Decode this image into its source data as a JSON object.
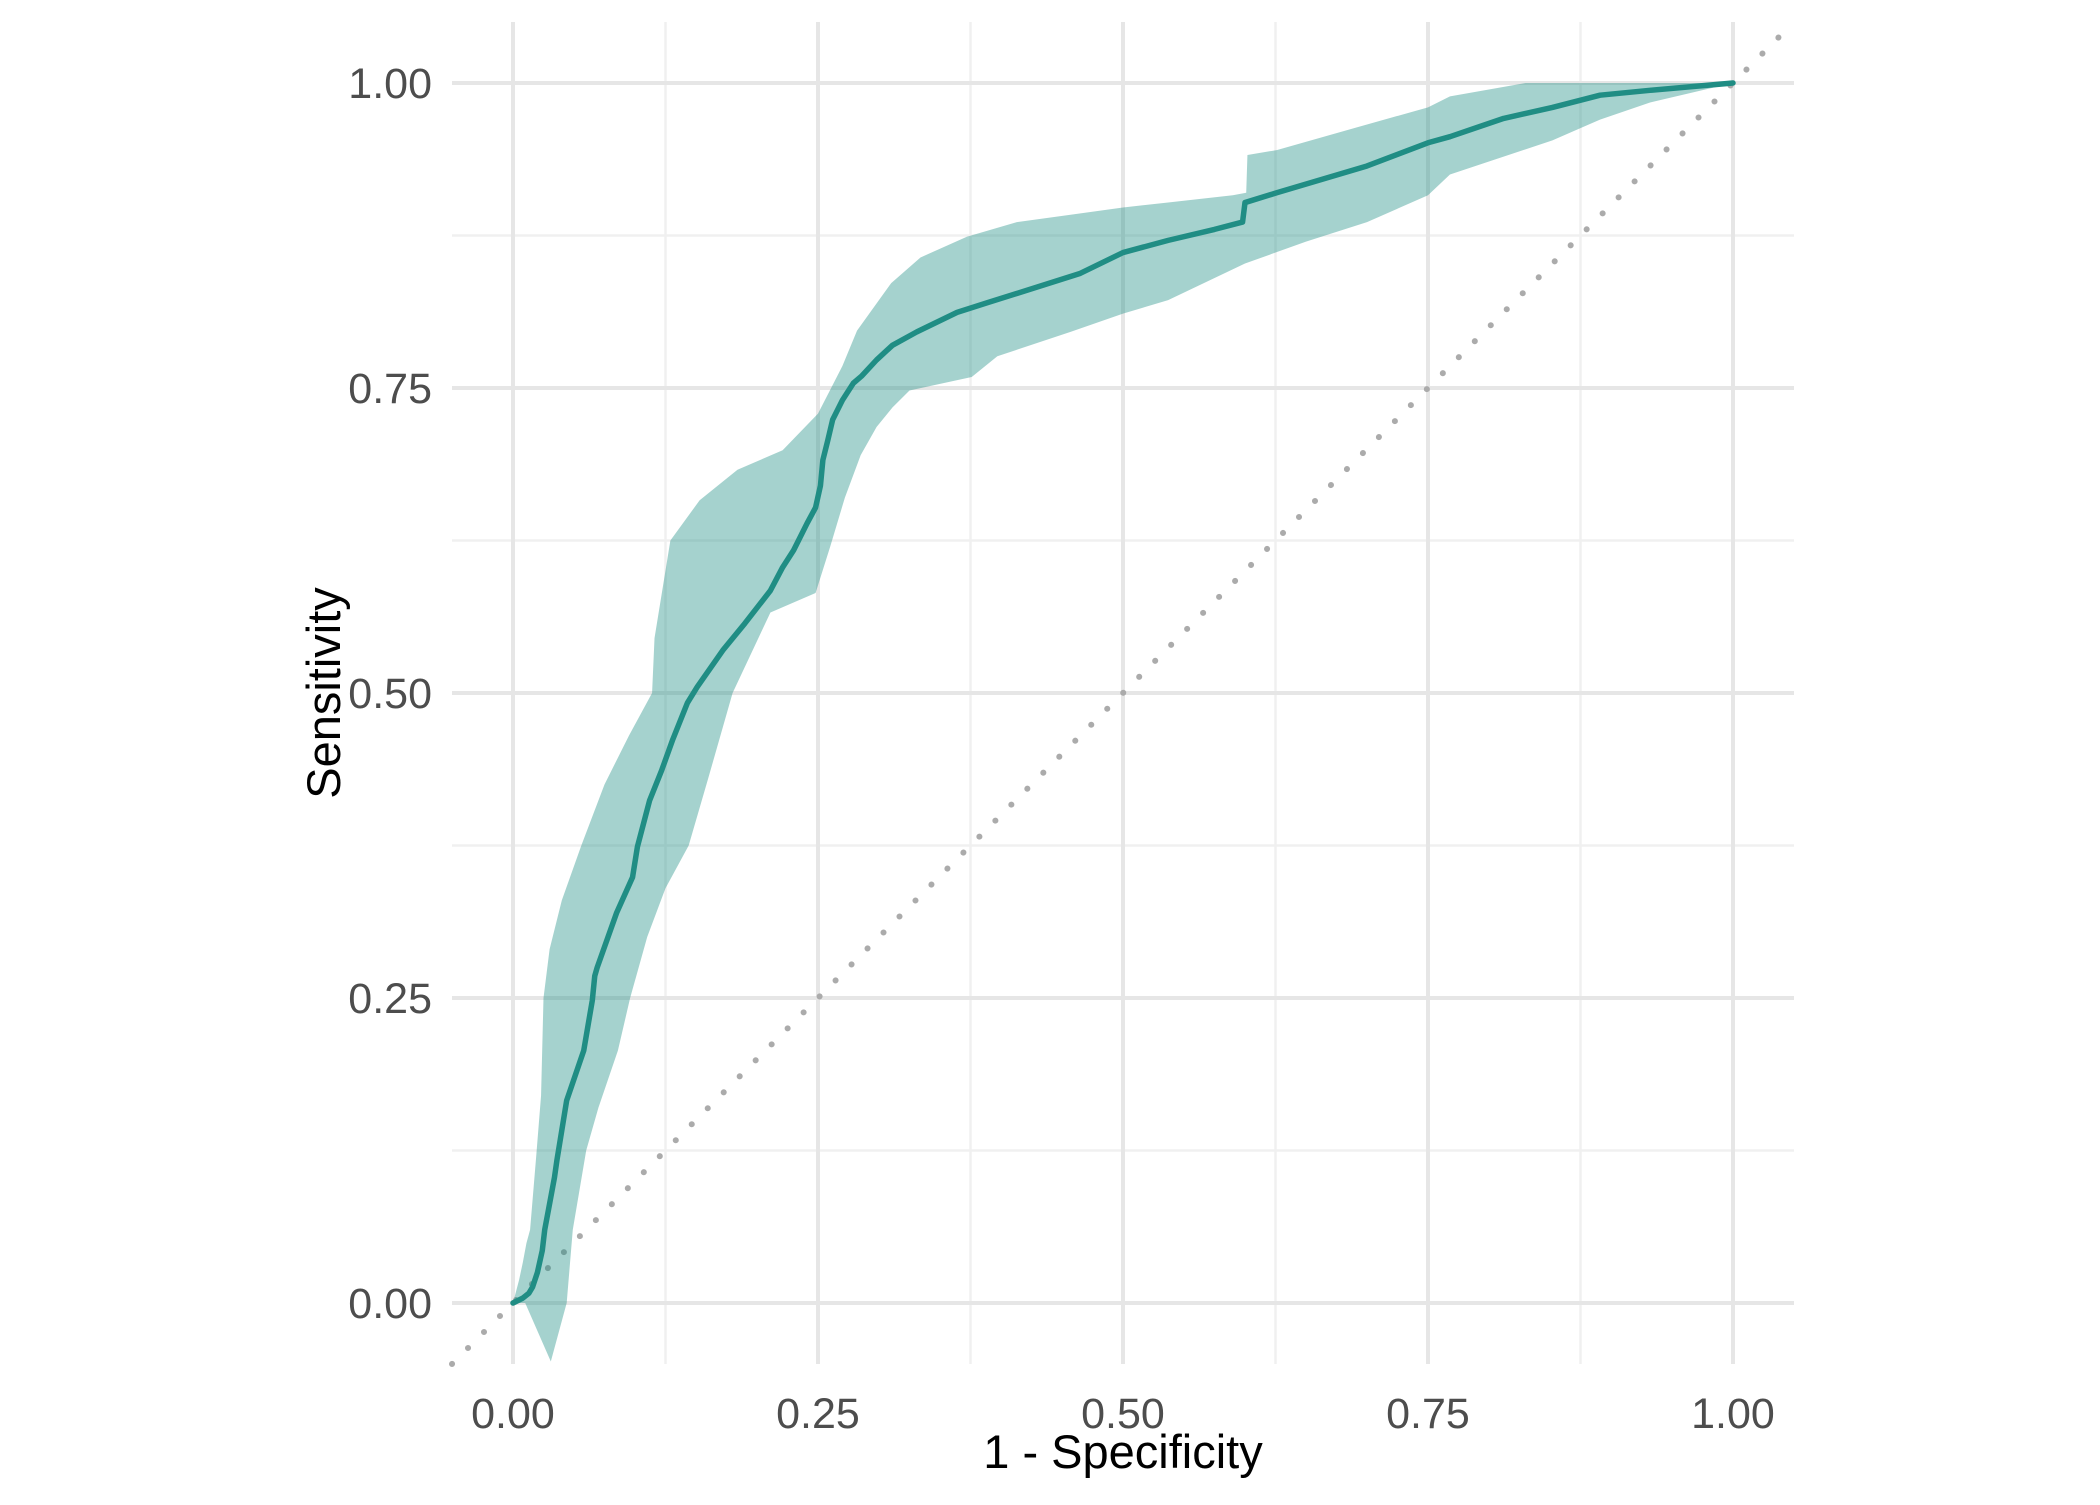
{
  "chart_data": {
    "type": "line",
    "subtype": "roc-curve-with-confidence-band",
    "title": "",
    "xlabel": "1 - Specificity",
    "ylabel": "Sensitivity",
    "xlim": [
      -0.05,
      1.05
    ],
    "ylim": [
      -0.05,
      1.05
    ],
    "x_ticks": {
      "values": [
        0,
        0.25,
        0.5,
        0.75,
        1
      ],
      "labels": [
        "0.00",
        "0.25",
        "0.50",
        "0.75",
        "1.00"
      ]
    },
    "y_ticks": {
      "values": [
        0,
        0.25,
        0.5,
        0.75,
        1
      ],
      "labels": [
        "0.00",
        "0.25",
        "0.50",
        "0.75",
        "1.00"
      ]
    },
    "grid": {
      "major": true,
      "minor": true
    },
    "legend_position": "none",
    "reference_line": {
      "style": "dotted",
      "from": [
        -0.05,
        -0.05
      ],
      "to": [
        1.05,
        1.05
      ]
    },
    "colors": {
      "roc_line": "#208d84",
      "ribbon_fill": "#1e8e85",
      "ribbon_opacity": 0.4,
      "grid_major": "#e6e6e6",
      "grid_minor": "#f0f0f0",
      "diagonal": "#ababab",
      "tick_label": "#4d4d4d",
      "axis_title": "#000000",
      "panel_background": "#ffffff"
    },
    "series": [
      {
        "name": "ROC curve",
        "role": "main-line",
        "points": [
          [
            0.0,
            0.0
          ],
          [
            0.008,
            0.004
          ],
          [
            0.013,
            0.008
          ],
          [
            0.016,
            0.013
          ],
          [
            0.02,
            0.025
          ],
          [
            0.024,
            0.043
          ],
          [
            0.026,
            0.06
          ],
          [
            0.029,
            0.076
          ],
          [
            0.034,
            0.103
          ],
          [
            0.036,
            0.117
          ],
          [
            0.044,
            0.166
          ],
          [
            0.058,
            0.207
          ],
          [
            0.065,
            0.248
          ],
          [
            0.067,
            0.268
          ],
          [
            0.069,
            0.275
          ],
          [
            0.085,
            0.32
          ],
          [
            0.098,
            0.349
          ],
          [
            0.102,
            0.374
          ],
          [
            0.112,
            0.412
          ],
          [
            0.122,
            0.437
          ],
          [
            0.131,
            0.462
          ],
          [
            0.143,
            0.492
          ],
          [
            0.151,
            0.505
          ],
          [
            0.172,
            0.535
          ],
          [
            0.19,
            0.557
          ],
          [
            0.211,
            0.584
          ],
          [
            0.221,
            0.603
          ],
          [
            0.23,
            0.617
          ],
          [
            0.241,
            0.639
          ],
          [
            0.248,
            0.652
          ],
          [
            0.252,
            0.67
          ],
          [
            0.254,
            0.691
          ],
          [
            0.258,
            0.707
          ],
          [
            0.262,
            0.724
          ],
          [
            0.27,
            0.74
          ],
          [
            0.279,
            0.754
          ],
          [
            0.286,
            0.76
          ],
          [
            0.298,
            0.773
          ],
          [
            0.311,
            0.785
          ],
          [
            0.331,
            0.796
          ],
          [
            0.364,
            0.812
          ],
          [
            0.389,
            0.82
          ],
          [
            0.421,
            0.83
          ],
          [
            0.465,
            0.844
          ],
          [
            0.5,
            0.861
          ],
          [
            0.537,
            0.871
          ],
          [
            0.575,
            0.88
          ],
          [
            0.598,
            0.886
          ],
          [
            0.6,
            0.902
          ],
          [
            0.626,
            0.91
          ],
          [
            0.7,
            0.932
          ],
          [
            0.75,
            0.951
          ],
          [
            0.768,
            0.956
          ],
          [
            0.812,
            0.971
          ],
          [
            0.852,
            0.98
          ],
          [
            0.891,
            0.99
          ],
          [
            0.932,
            0.994
          ],
          [
            1.0,
            1.0
          ]
        ]
      },
      {
        "name": "Confidence band upper bound",
        "role": "ribbon-upper",
        "points": [
          [
            0.0,
            0.0
          ],
          [
            0.005,
            0.019
          ],
          [
            0.008,
            0.033
          ],
          [
            0.011,
            0.049
          ],
          [
            0.014,
            0.06
          ],
          [
            0.019,
            0.12
          ],
          [
            0.023,
            0.17
          ],
          [
            0.025,
            0.25
          ],
          [
            0.03,
            0.29
          ],
          [
            0.04,
            0.33
          ],
          [
            0.056,
            0.375
          ],
          [
            0.075,
            0.425
          ],
          [
            0.095,
            0.465
          ],
          [
            0.114,
            0.5
          ],
          [
            0.116,
            0.545
          ],
          [
            0.129,
            0.625
          ],
          [
            0.153,
            0.658
          ],
          [
            0.184,
            0.683
          ],
          [
            0.221,
            0.699
          ],
          [
            0.25,
            0.729
          ],
          [
            0.27,
            0.768
          ],
          [
            0.282,
            0.797
          ],
          [
            0.31,
            0.836
          ],
          [
            0.334,
            0.857
          ],
          [
            0.372,
            0.874
          ],
          [
            0.413,
            0.886
          ],
          [
            0.457,
            0.892
          ],
          [
            0.5,
            0.898
          ],
          [
            0.537,
            0.902
          ],
          [
            0.59,
            0.908
          ],
          [
            0.601,
            0.91
          ],
          [
            0.602,
            0.941
          ],
          [
            0.626,
            0.945
          ],
          [
            0.7,
            0.966
          ],
          [
            0.75,
            0.98
          ],
          [
            0.768,
            0.989
          ],
          [
            0.83,
            1.0
          ],
          [
            1.0,
            1.0
          ]
        ]
      },
      {
        "name": "Confidence band lower bound",
        "role": "ribbon-lower",
        "points": [
          [
            0.0,
            0.0
          ],
          [
            0.01,
            0.0
          ],
          [
            0.031,
            -0.048
          ],
          [
            0.044,
            0.0
          ],
          [
            0.049,
            0.06
          ],
          [
            0.06,
            0.125
          ],
          [
            0.07,
            0.16
          ],
          [
            0.086,
            0.207
          ],
          [
            0.096,
            0.25
          ],
          [
            0.11,
            0.3
          ],
          [
            0.125,
            0.34
          ],
          [
            0.144,
            0.375
          ],
          [
            0.16,
            0.43
          ],
          [
            0.18,
            0.5
          ],
          [
            0.211,
            0.566
          ],
          [
            0.248,
            0.582
          ],
          [
            0.26,
            0.62
          ],
          [
            0.272,
            0.66
          ],
          [
            0.285,
            0.695
          ],
          [
            0.298,
            0.718
          ],
          [
            0.311,
            0.734
          ],
          [
            0.325,
            0.748
          ],
          [
            0.376,
            0.759
          ],
          [
            0.397,
            0.776
          ],
          [
            0.457,
            0.796
          ],
          [
            0.5,
            0.811
          ],
          [
            0.537,
            0.822
          ],
          [
            0.6,
            0.852
          ],
          [
            0.65,
            0.87
          ],
          [
            0.7,
            0.886
          ],
          [
            0.75,
            0.908
          ],
          [
            0.768,
            0.925
          ],
          [
            0.852,
            0.953
          ],
          [
            0.891,
            0.97
          ],
          [
            0.932,
            0.984
          ],
          [
            1.0,
            1.0
          ]
        ]
      }
    ]
  }
}
